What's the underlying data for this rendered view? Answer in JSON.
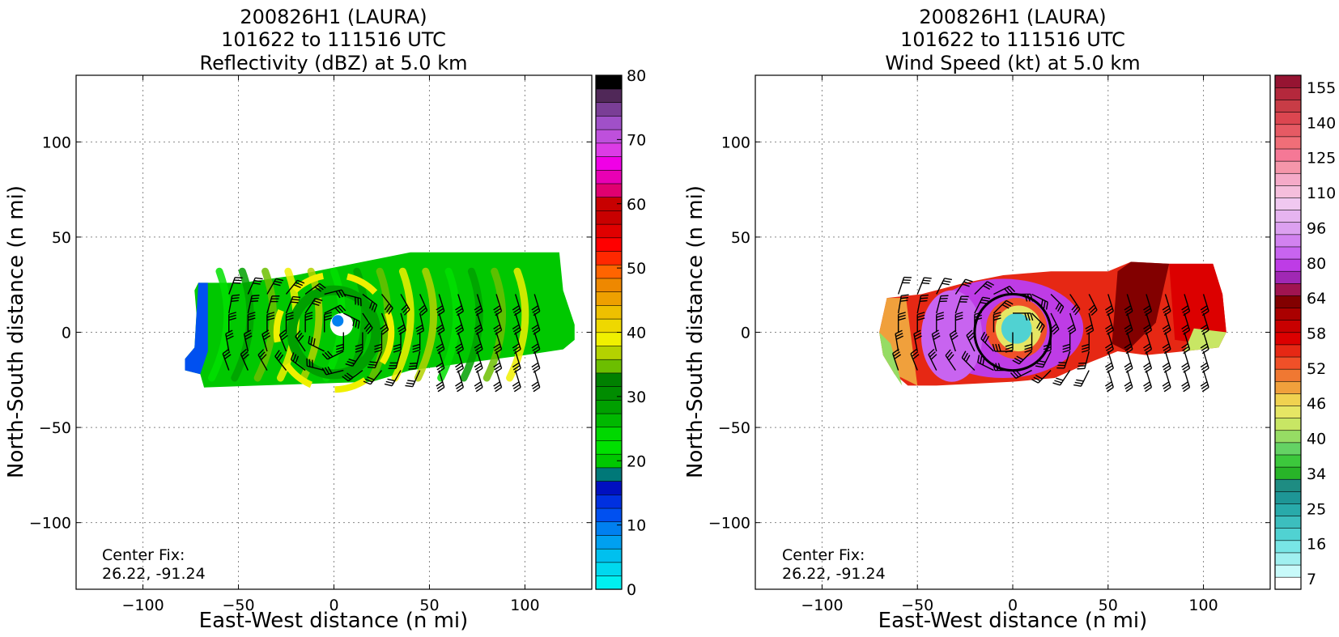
{
  "chart_data": [
    {
      "type": "heatmap",
      "title_lines": [
        "200826H1 (LAURA)",
        "101622 to 111516 UTC",
        "Reflectivity (dBZ) at 5.0 km"
      ],
      "xlabel": "East-West distance (n mi)",
      "ylabel": "North-South distance (n mi)",
      "xlim": [
        -135,
        135
      ],
      "ylim": [
        -135,
        135
      ],
      "xticks": [
        -100,
        -50,
        0,
        50,
        100
      ],
      "yticks": [
        -100,
        -50,
        0,
        50,
        100
      ],
      "xtick_labels": [
        "−100",
        "−50",
        "0",
        "50",
        "100"
      ],
      "ytick_labels": [
        "−100",
        "−50",
        "0",
        "50",
        "100"
      ],
      "grid": true,
      "annotation": [
        "Center Fix:",
        "26.22, -91.24"
      ],
      "colorbar": {
        "min": 0,
        "max": 80,
        "step": 5,
        "tick_values": [
          0,
          10,
          20,
          30,
          40,
          50,
          60,
          70,
          80
        ],
        "tick_labels": [
          "0",
          "10",
          "20",
          "30",
          "40",
          "50",
          "60",
          "70",
          "80"
        ],
        "colors": [
          "#00f0f0",
          "#00d8ee",
          "#00c0ee",
          "#00a0f0",
          "#0080f0",
          "#0050f0",
          "#0030e0",
          "#0010c0",
          "#007878",
          "#00c800",
          "#00e000",
          "#00d800",
          "#00b800",
          "#00a000",
          "#008c00",
          "#008000",
          "#6cbe00",
          "#b4d200",
          "#f0f000",
          "#eed800",
          "#eec000",
          "#eea000",
          "#ee8800",
          "#ff6400",
          "#ff2800",
          "#ff0000",
          "#e00000",
          "#c80000",
          "#c80000",
          "#e00070",
          "#e800b4",
          "#f000e6",
          "#dc3ce6",
          "#be50dc",
          "#a050c8",
          "#7a3e96",
          "#502858",
          "#000000"
        ]
      },
      "storm": {
        "center": [
          0,
          0
        ],
        "eye_radius": 6,
        "shape": "elongated west-east band",
        "background_color": "#00c800",
        "band_colors": [
          "#00e000",
          "#00a000",
          "#6cbe00",
          "#f0f000",
          "#b4d200"
        ],
        "edge_color": "#0050f0"
      }
    },
    {
      "type": "heatmap",
      "title_lines": [
        "200826H1 (LAURA)",
        "101622 to 111516 UTC",
        "Wind Speed (kt) at 5.0 km"
      ],
      "xlabel": "East-West distance (n mi)",
      "ylabel": "North-South distance (n mi)",
      "xlim": [
        -135,
        135
      ],
      "ylim": [
        -135,
        135
      ],
      "xticks": [
        -100,
        -50,
        0,
        50,
        100
      ],
      "yticks": [
        -100,
        -50,
        0,
        50,
        100
      ],
      "xtick_labels": [
        "−100",
        "−50",
        "0",
        "50",
        "100"
      ],
      "ytick_labels": [
        "−100",
        "−50",
        "0",
        "50",
        "100"
      ],
      "grid": true,
      "annotation": [
        "Center Fix:",
        "26.22, -91.24"
      ],
      "colorbar": {
        "tick_labels_bottom_to_top": [
          "7",
          "16",
          "25",
          "34",
          "40",
          "46",
          "52",
          "58",
          "64",
          "80",
          "96",
          "110",
          "125",
          "140",
          "155"
        ],
        "colors": [
          "#ffffff",
          "#c8fafa",
          "#a0f0f0",
          "#78e6e6",
          "#50d2d2",
          "#3cbebe",
          "#28aaaa",
          "#1e9696",
          "#1e8c82",
          "#28b428",
          "#3cc83c",
          "#64d264",
          "#96dc64",
          "#c8e664",
          "#e6e664",
          "#f0d250",
          "#f0a03c",
          "#f07832",
          "#f05028",
          "#e62814",
          "#dc0000",
          "#c80000",
          "#aa0000",
          "#820000",
          "#a01450",
          "#a028b4",
          "#be3ce6",
          "#c864f0",
          "#d282f0",
          "#dca0f0",
          "#e6b4f0",
          "#f0c8f0",
          "#f5bedc",
          "#f5aac8",
          "#f596aa",
          "#f57896",
          "#f06e78",
          "#e65a64",
          "#dc4650",
          "#c83c46",
          "#b4283c",
          "#961432"
        ]
      },
      "storm": {
        "center": [
          0,
          0
        ],
        "eye_radius": 8,
        "shape": "elongated west-east band",
        "outer_colors": [
          "#e62814",
          "#a01450",
          "#820000"
        ],
        "inner_ring_color": "#be3ce6",
        "eye_color": "#50d2d2"
      }
    }
  ]
}
